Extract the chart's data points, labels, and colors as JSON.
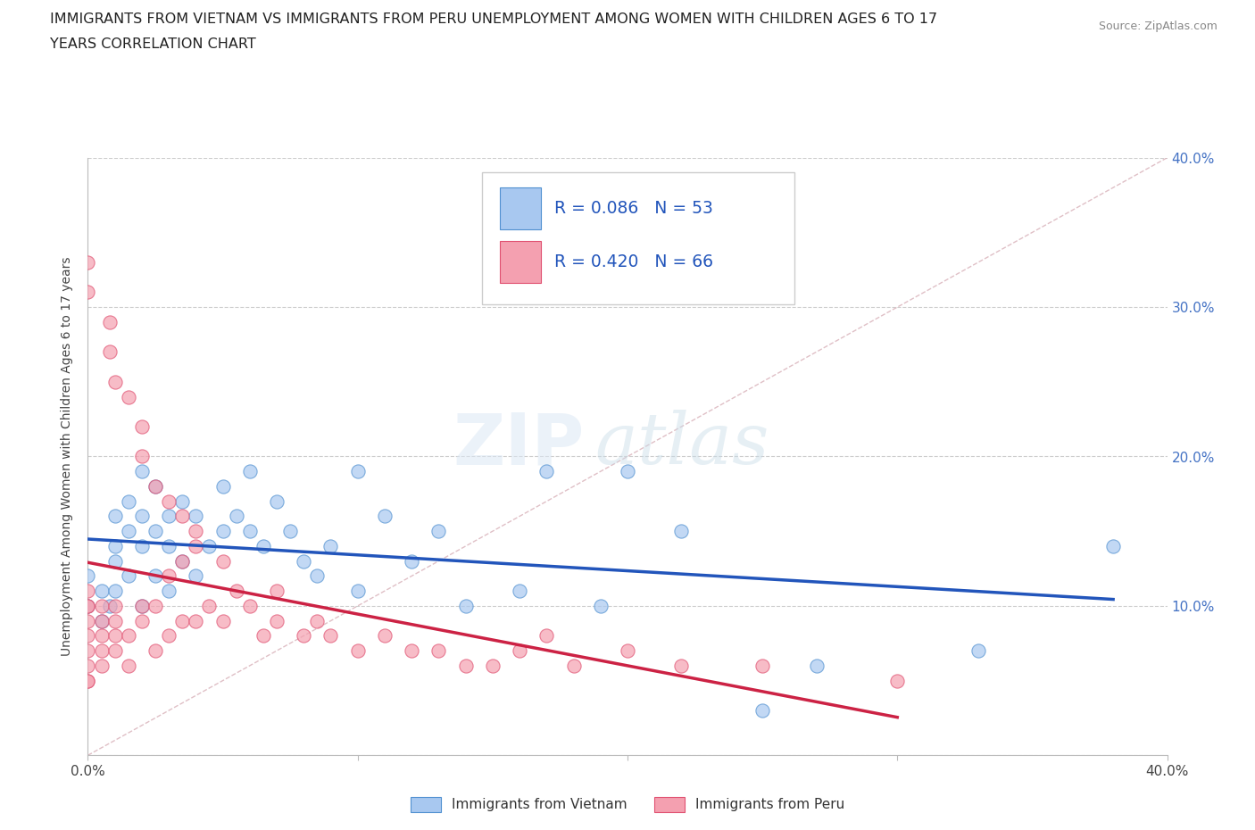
{
  "title_line1": "IMMIGRANTS FROM VIETNAM VS IMMIGRANTS FROM PERU UNEMPLOYMENT AMONG WOMEN WITH CHILDREN AGES 6 TO 17",
  "title_line2": "YEARS CORRELATION CHART",
  "source": "Source: ZipAtlas.com",
  "ylabel": "Unemployment Among Women with Children Ages 6 to 17 years",
  "xlim": [
    0.0,
    0.4
  ],
  "ylim": [
    0.0,
    0.4
  ],
  "watermark_zip": "ZIP",
  "watermark_atlas": "atlas",
  "label_vietnam": "Immigrants from Vietnam",
  "label_peru": "Immigrants from Peru",
  "color_vietnam_fill": "#a8c8f0",
  "color_vietnam_edge": "#5090d0",
  "color_peru_fill": "#f4a0b0",
  "color_peru_edge": "#e05070",
  "color_vietnam_line": "#2255bb",
  "color_peru_line": "#cc2244",
  "color_diagonal": "#d8b0b8",
  "color_grid": "#c8c8c8",
  "color_ytick_right": "#4472c4",
  "background": "#ffffff",
  "legend_r1": "R = 0.086",
  "legend_n1": "N = 53",
  "legend_r2": "R = 0.420",
  "legend_n2": "N = 66",
  "vietnam_x": [
    0.0,
    0.0,
    0.005,
    0.005,
    0.008,
    0.01,
    0.01,
    0.01,
    0.01,
    0.015,
    0.015,
    0.015,
    0.02,
    0.02,
    0.02,
    0.02,
    0.025,
    0.025,
    0.025,
    0.03,
    0.03,
    0.03,
    0.035,
    0.035,
    0.04,
    0.04,
    0.045,
    0.05,
    0.05,
    0.055,
    0.06,
    0.06,
    0.065,
    0.07,
    0.075,
    0.08,
    0.085,
    0.09,
    0.1,
    0.1,
    0.11,
    0.12,
    0.13,
    0.14,
    0.16,
    0.17,
    0.19,
    0.2,
    0.22,
    0.25,
    0.27,
    0.33,
    0.38
  ],
  "vietnam_y": [
    0.1,
    0.12,
    0.09,
    0.11,
    0.1,
    0.16,
    0.14,
    0.13,
    0.11,
    0.17,
    0.15,
    0.12,
    0.19,
    0.16,
    0.14,
    0.1,
    0.18,
    0.15,
    0.12,
    0.16,
    0.14,
    0.11,
    0.17,
    0.13,
    0.16,
    0.12,
    0.14,
    0.18,
    0.15,
    0.16,
    0.19,
    0.15,
    0.14,
    0.17,
    0.15,
    0.13,
    0.12,
    0.14,
    0.11,
    0.19,
    0.16,
    0.13,
    0.15,
    0.1,
    0.11,
    0.19,
    0.1,
    0.19,
    0.15,
    0.03,
    0.06,
    0.07,
    0.14
  ],
  "peru_x": [
    0.0,
    0.0,
    0.0,
    0.0,
    0.0,
    0.0,
    0.0,
    0.0,
    0.0,
    0.0,
    0.0,
    0.005,
    0.005,
    0.005,
    0.005,
    0.005,
    0.008,
    0.008,
    0.01,
    0.01,
    0.01,
    0.01,
    0.01,
    0.015,
    0.015,
    0.015,
    0.02,
    0.02,
    0.02,
    0.02,
    0.025,
    0.025,
    0.025,
    0.03,
    0.03,
    0.03,
    0.035,
    0.035,
    0.035,
    0.04,
    0.04,
    0.04,
    0.045,
    0.05,
    0.05,
    0.055,
    0.06,
    0.065,
    0.07,
    0.07,
    0.08,
    0.085,
    0.09,
    0.1,
    0.11,
    0.12,
    0.13,
    0.14,
    0.15,
    0.16,
    0.17,
    0.18,
    0.2,
    0.22,
    0.25,
    0.3
  ],
  "peru_y": [
    0.05,
    0.05,
    0.06,
    0.07,
    0.08,
    0.09,
    0.1,
    0.1,
    0.11,
    0.33,
    0.31,
    0.06,
    0.07,
    0.08,
    0.09,
    0.1,
    0.29,
    0.27,
    0.07,
    0.08,
    0.09,
    0.1,
    0.25,
    0.06,
    0.08,
    0.24,
    0.09,
    0.1,
    0.22,
    0.2,
    0.07,
    0.1,
    0.18,
    0.08,
    0.12,
    0.17,
    0.09,
    0.13,
    0.16,
    0.09,
    0.14,
    0.15,
    0.1,
    0.13,
    0.09,
    0.11,
    0.1,
    0.08,
    0.09,
    0.11,
    0.08,
    0.09,
    0.08,
    0.07,
    0.08,
    0.07,
    0.07,
    0.06,
    0.06,
    0.07,
    0.08,
    0.06,
    0.07,
    0.06,
    0.06,
    0.05
  ]
}
